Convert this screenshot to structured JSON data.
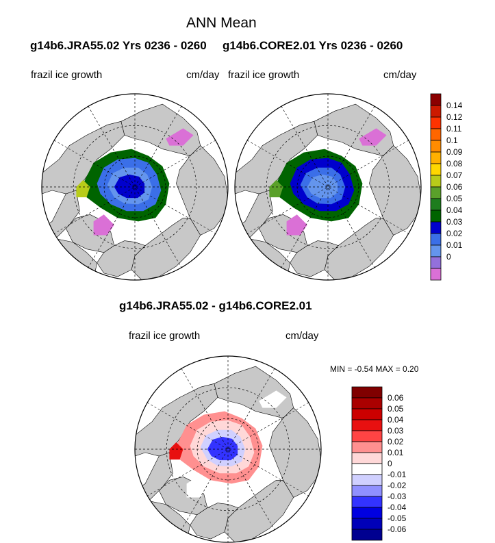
{
  "title": "ANN Mean",
  "panels": {
    "left_run": "g14b6.JRA55.02  Yrs 0236 - 0260",
    "right_run": "g14b6.CORE2.01  Yrs 0236 - 0260",
    "left_var": "frazil ice growth",
    "left_units": "cm/day",
    "right_var": "frazil ice growth",
    "right_units": "cm/day"
  },
  "diff": {
    "title": "g14b6.JRA55.02 - g14b6.CORE2.01",
    "var": "frazil ice growth",
    "units": "cm/day",
    "minmax": "MIN =  -0.54 MAX =   0.20"
  },
  "colorbar_top": {
    "labels": [
      "0.14",
      "0.12",
      "0.11",
      "0.1",
      "0.09",
      "0.08",
      "0.07",
      "0.06",
      "0.05",
      "0.04",
      "0.03",
      "0.02",
      "0.01",
      "0"
    ],
    "colors": [
      "#8b0000",
      "#cc1a00",
      "#ff3300",
      "#ff6600",
      "#ff8c00",
      "#ffb000",
      "#ffd700",
      "#b8cc1a",
      "#5aa02a",
      "#1e7d1e",
      "#006400",
      "#0000cd",
      "#3b6fe8",
      "#6495ed",
      "#9370db",
      "#da70d6"
    ]
  },
  "colorbar_diff": {
    "labels": [
      "0.06",
      "0.05",
      "0.04",
      "0.03",
      "0.02",
      "0.01",
      "0",
      "-0.01",
      "-0.02",
      "-0.03",
      "-0.04",
      "-0.05",
      "-0.06"
    ],
    "colors": [
      "#800000",
      "#aa0000",
      "#cc0000",
      "#e81010",
      "#ff4444",
      "#ff9090",
      "#ffd8d8",
      "#ffffff",
      "#d0d0ff",
      "#9090ff",
      "#3333ff",
      "#0000e0",
      "#0000b8",
      "#000090"
    ]
  },
  "colors": {
    "land": "#c8c8c8",
    "ocean": "#ffffff",
    "frame": "#000000"
  }
}
